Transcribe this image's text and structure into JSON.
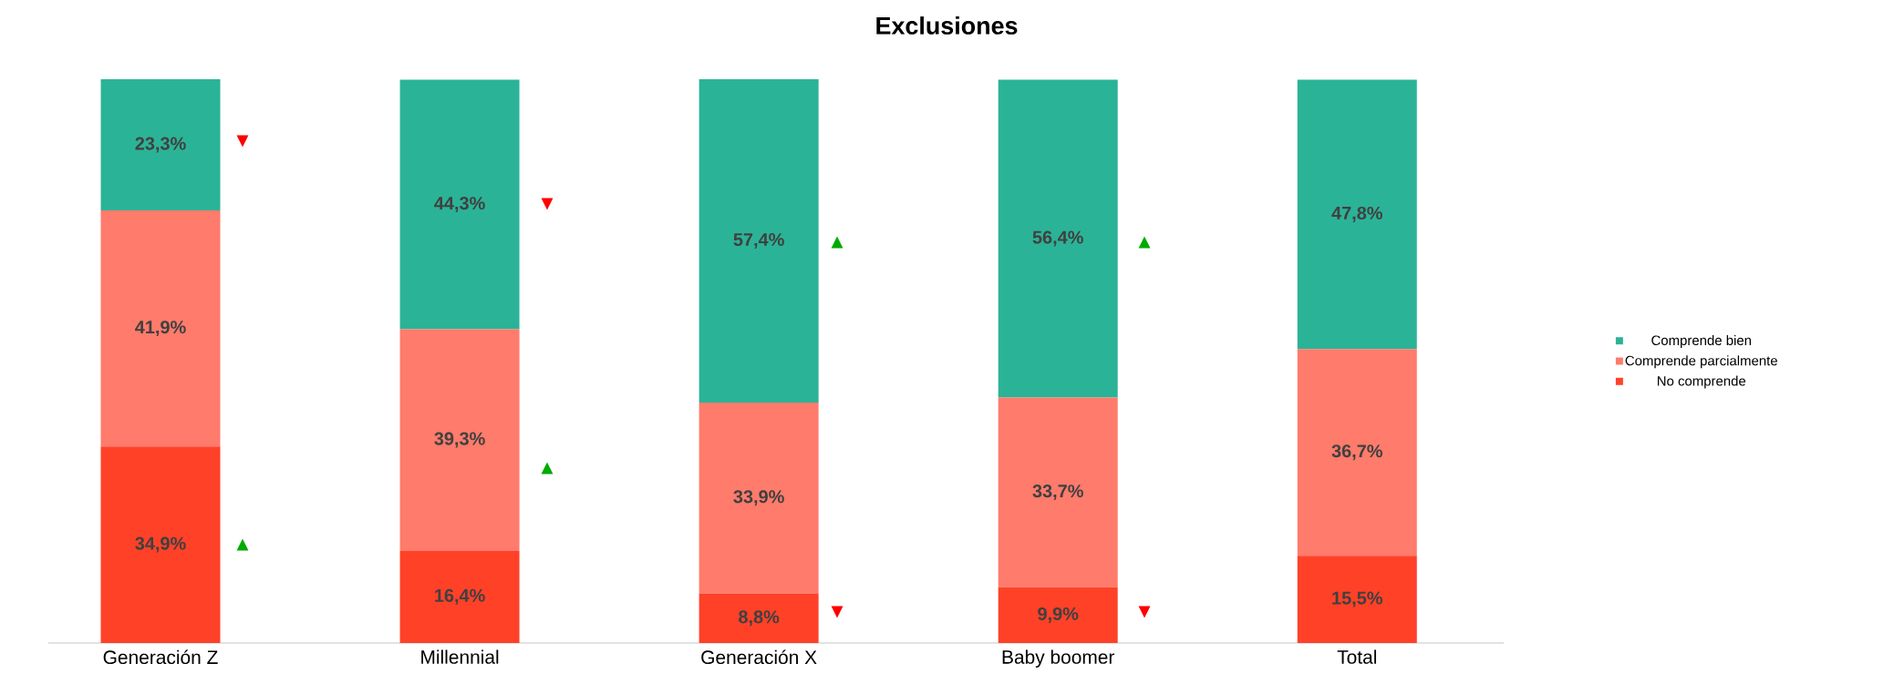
{
  "chart_data": {
    "type": "bar",
    "title": "Exclusiones",
    "stacked": true,
    "legend": "right",
    "categories": [
      "Generación Z",
      "Millennial",
      "Generación X",
      "Baby boomer",
      "Total"
    ],
    "series": [
      {
        "name": "No comprende",
        "color": "#ff4128",
        "values": [
          34.9,
          16.4,
          8.8,
          9.9,
          15.5
        ],
        "value_labels": [
          "34,9%",
          "16,4%",
          "8,8%",
          "9,9%",
          "15,5%"
        ]
      },
      {
        "name": "Comprende parcialmente",
        "color": "#ff7b6b",
        "values": [
          41.9,
          39.3,
          33.9,
          33.7,
          36.7
        ],
        "value_labels": [
          "41,9%",
          "39,3%",
          "33,9%",
          "33,7%",
          "36,7%"
        ]
      },
      {
        "name": "Comprende bien",
        "color": "#2bb397",
        "values": [
          23.3,
          44.3,
          57.4,
          56.4,
          47.8
        ],
        "value_labels": [
          "23,3%",
          "44,3%",
          "57,4%",
          "56,4%",
          "47,8%"
        ]
      }
    ],
    "annotations": [
      "▼",
      "▲",
      "▼",
      "▲",
      "▲",
      "▼",
      "▲",
      "▼"
    ]
  }
}
